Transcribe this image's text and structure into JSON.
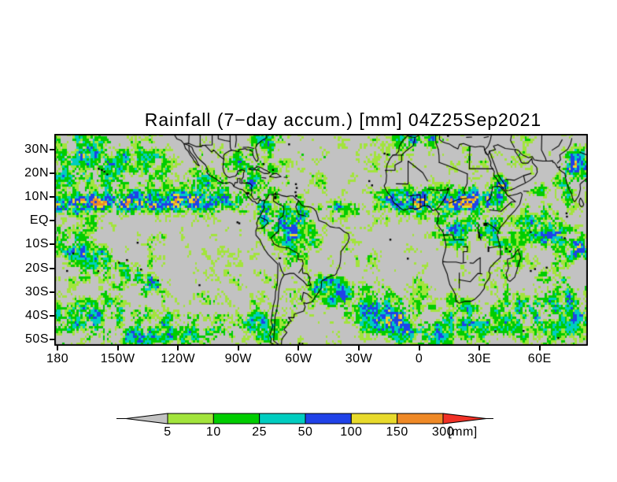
{
  "title": "Rainfall (7−day accum.) [mm] 04Z25Sep2021",
  "axes": {
    "lat_ticks": [
      {
        "label": "30N",
        "lat": 30
      },
      {
        "label": "20N",
        "lat": 20
      },
      {
        "label": "10N",
        "lat": 10
      },
      {
        "label": "EQ",
        "lat": 0
      },
      {
        "label": "10S",
        "lat": -10
      },
      {
        "label": "20S",
        "lat": -20
      },
      {
        "label": "30S",
        "lat": -30
      },
      {
        "label": "40S",
        "lat": -40
      },
      {
        "label": "50S",
        "lat": -50
      }
    ],
    "lon_ticks": [
      {
        "label": "180",
        "lon": -180
      },
      {
        "label": "150W",
        "lon": -150
      },
      {
        "label": "120W",
        "lon": -120
      },
      {
        "label": "90W",
        "lon": -90
      },
      {
        "label": "60W",
        "lon": -60
      },
      {
        "label": "30W",
        "lon": -30
      },
      {
        "label": "0",
        "lon": 0
      },
      {
        "label": "30E",
        "lon": 30
      },
      {
        "label": "60E",
        "lon": 60
      }
    ]
  },
  "colorbar": {
    "tick_labels": [
      "5",
      "10",
      "25",
      "50",
      "100",
      "150",
      "300"
    ],
    "unit": "[mm]"
  },
  "colors": {
    "page_background": "#ffffff",
    "map_background": "#c2c2c2",
    "coastline": "#000000",
    "frame": "#000000",
    "underflow_arrow": "#c2c2c2"
  },
  "chart_data": {
    "type": "heatmap",
    "title": "Rainfall (7−day accum.) [mm] 04Z25Sep2021",
    "units": "mm",
    "valid_time": "04Z25Sep2021",
    "accumulation": "7-day",
    "extent": {
      "west": -181.6,
      "east": 84.0,
      "north": 36.65,
      "south": -52.72
    },
    "grid_resolution_deg": 1,
    "levels": [
      5,
      10,
      25,
      50,
      100,
      150,
      300
    ],
    "level_colors": [
      "#a2e43c",
      "#00cd00",
      "#00cdc0",
      "#2042e8",
      "#e8da2c",
      "#ef8926",
      "#f03126"
    ],
    "background_amp": 14,
    "rain_regions": [
      [
        -176,
        7,
        10,
        3.2,
        300
      ],
      [
        -158,
        7.5,
        12,
        3.2,
        330
      ],
      [
        -140,
        8,
        12,
        3.5,
        330
      ],
      [
        -120,
        8.5,
        14,
        3.5,
        210
      ],
      [
        -99,
        8,
        10,
        4.5,
        215
      ],
      [
        -168,
        31,
        10,
        6,
        160
      ],
      [
        -152,
        27,
        10,
        7,
        95
      ],
      [
        -160,
        20,
        24,
        8,
        45
      ],
      [
        -134,
        24,
        9,
        6,
        65
      ],
      [
        -176,
        22,
        8,
        6,
        70
      ],
      [
        -108,
        15,
        6,
        4.5,
        160
      ],
      [
        -88,
        25.5,
        8,
        5,
        85
      ],
      [
        -76,
        33.5,
        6,
        3.5,
        110
      ],
      [
        -80,
        16.5,
        10,
        5,
        95
      ],
      [
        -77.5,
        4,
        2.2,
        4.8,
        420
      ],
      [
        -66,
        1,
        9,
        6,
        220
      ],
      [
        -60,
        -9,
        8,
        6,
        100
      ],
      [
        -45,
        5,
        12,
        2.8,
        130
      ],
      [
        -48.5,
        -27.5,
        4,
        3.5,
        290
      ],
      [
        -38,
        -32,
        8,
        5,
        130
      ],
      [
        -24,
        -38,
        10,
        6,
        165
      ],
      [
        -8,
        -43,
        12,
        6,
        150
      ],
      [
        6,
        -47,
        10,
        5,
        120
      ],
      [
        -173,
        -10,
        8,
        5,
        150
      ],
      [
        -160,
        -16,
        8,
        5,
        100
      ],
      [
        -148,
        -22,
        7,
        5,
        130
      ],
      [
        -166,
        -43,
        16,
        7,
        170
      ],
      [
        -138,
        -46,
        14,
        7,
        100
      ],
      [
        -134,
        -28,
        6,
        5,
        150
      ],
      [
        -108,
        -47,
        14,
        6,
        95
      ],
      [
        -80,
        -45,
        8,
        6,
        115
      ],
      [
        0,
        35,
        8,
        3,
        170
      ],
      [
        -10,
        9,
        9,
        4,
        190
      ],
      [
        3,
        8,
        12,
        4,
        240
      ],
      [
        20,
        8,
        12,
        4.5,
        260
      ],
      [
        33,
        9.5,
        7,
        4,
        190
      ],
      [
        20,
        -4,
        10,
        5,
        135
      ],
      [
        38,
        12,
        5,
        4,
        150
      ],
      [
        35,
        -3,
        6,
        5,
        115
      ],
      [
        41,
        15,
        3,
        3,
        110
      ],
      [
        45,
        -14,
        6,
        5,
        70
      ],
      [
        25,
        -42,
        12,
        6,
        135
      ],
      [
        55,
        -40,
        14,
        7,
        145
      ],
      [
        80,
        -38,
        12,
        7,
        155
      ],
      [
        65,
        -28,
        10,
        6,
        115
      ],
      [
        58,
        -3,
        10,
        5,
        105
      ],
      [
        68,
        -6,
        6,
        3.5,
        240
      ],
      [
        80,
        -12,
        5,
        4,
        330
      ],
      [
        80,
        23,
        6,
        6,
        210
      ],
      [
        73,
        14,
        3,
        5,
        95
      ],
      [
        62,
        10,
        6,
        4,
        50
      ],
      [
        84,
        19,
        4,
        4,
        160
      ]
    ]
  }
}
